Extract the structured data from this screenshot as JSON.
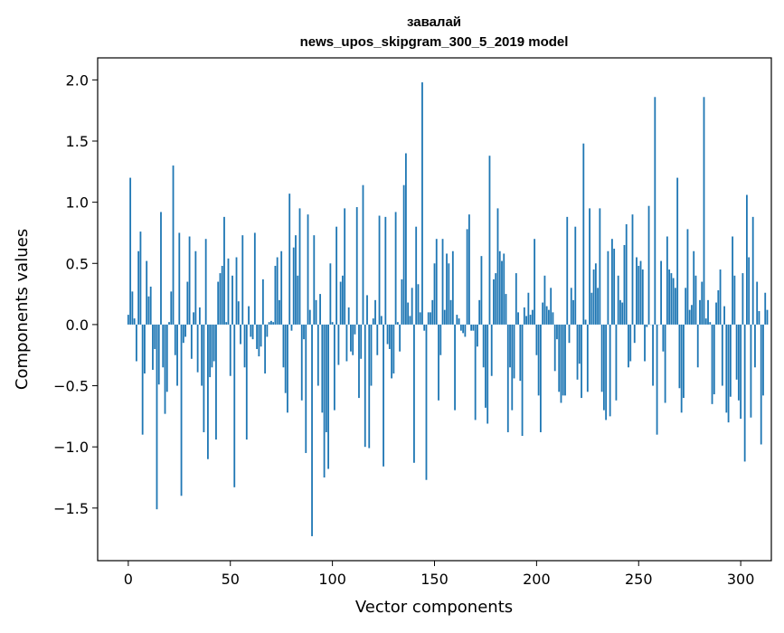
{
  "chart_data": {
    "type": "bar",
    "title_line1": "завалай",
    "title_line2": "news_upos_skipgram_300_5_2019 model",
    "xlabel": "Vector components",
    "ylabel": "Components values",
    "xlim": [
      -15,
      315
    ],
    "ylim": [
      -1.93,
      2.18
    ],
    "xticks": [
      0,
      50,
      100,
      150,
      200,
      250,
      300
    ],
    "xtick_labels": [
      "0",
      "50",
      "100",
      "150",
      "200",
      "250",
      "300"
    ],
    "yticks": [
      -1.5,
      -1.0,
      -0.5,
      0.0,
      0.5,
      1.0,
      1.5,
      2.0
    ],
    "ytick_labels": [
      "−1.5",
      "−1.0",
      "−0.5",
      "0.0",
      "0.5",
      "1.0",
      "1.5",
      "2.0"
    ],
    "grid": false,
    "bar_color": "#1f77b4",
    "values": [
      0.08,
      1.2,
      0.27,
      0.05,
      -0.3,
      0.6,
      0.76,
      -0.9,
      -0.4,
      0.52,
      0.23,
      0.31,
      -0.37,
      -0.2,
      -1.51,
      -0.49,
      0.92,
      -0.35,
      -0.73,
      -0.55,
      0.02,
      0.27,
      1.3,
      -0.25,
      -0.5,
      0.75,
      -1.4,
      -0.15,
      -0.1,
      0.35,
      0.72,
      -0.28,
      0.1,
      0.6,
      -0.39,
      0.14,
      -0.5,
      -0.88,
      0.7,
      -1.1,
      -0.43,
      -0.35,
      -0.3,
      -0.94,
      0.35,
      0.42,
      0.48,
      0.88,
      0.02,
      0.54,
      -0.42,
      0.4,
      -1.33,
      0.55,
      0.19,
      -0.16,
      0.73,
      -0.35,
      -0.94,
      0.15,
      -0.1,
      -0.12,
      0.75,
      -0.2,
      -0.26,
      -0.18,
      0.37,
      -0.4,
      -0.1,
      0.02,
      0.03,
      0.02,
      0.48,
      0.55,
      0.2,
      0.6,
      -0.35,
      -0.56,
      -0.72,
      1.07,
      -0.05,
      0.63,
      0.73,
      0.4,
      0.95,
      -0.62,
      -0.12,
      -1.05,
      0.9,
      0.12,
      -1.73,
      0.73,
      0.2,
      -0.5,
      0.25,
      -0.72,
      -1.25,
      -0.88,
      -1.18,
      0.5,
      0.02,
      -0.7,
      0.8,
      -0.33,
      0.35,
      0.4,
      0.95,
      -0.3,
      0.14,
      -0.22,
      -0.25,
      -0.08,
      0.96,
      -0.6,
      -0.28,
      1.14,
      -1.0,
      0.24,
      -1.01,
      -0.5,
      0.05,
      0.2,
      -0.25,
      0.89,
      0.07,
      -1.16,
      0.88,
      -0.16,
      -0.2,
      -0.44,
      -0.4,
      0.92,
      0.02,
      -0.22,
      0.37,
      1.14,
      1.4,
      0.18,
      0.07,
      0.3,
      -1.13,
      0.8,
      0.33,
      0.1,
      1.98,
      -0.05,
      -1.27,
      0.1,
      0.1,
      0.2,
      0.5,
      0.7,
      -0.62,
      -0.25,
      0.7,
      0.12,
      0.58,
      0.5,
      0.2,
      0.6,
      -0.7,
      0.08,
      0.05,
      -0.05,
      -0.07,
      -0.1,
      0.78,
      0.9,
      -0.05,
      -0.05,
      -0.78,
      -0.18,
      0.2,
      0.56,
      -0.35,
      -0.68,
      -0.81,
      1.38,
      -0.42,
      0.37,
      0.42,
      0.95,
      0.6,
      0.52,
      0.58,
      0.25,
      -0.88,
      -0.35,
      -0.7,
      -0.44,
      0.42,
      0.1,
      -0.46,
      -0.91,
      0.14,
      0.07,
      0.26,
      0.08,
      0.12,
      0.7,
      -0.25,
      -0.58,
      -0.88,
      0.18,
      0.4,
      0.15,
      0.12,
      0.3,
      0.1,
      -0.38,
      -0.12,
      -0.55,
      -0.64,
      -0.58,
      -0.58,
      0.88,
      -0.15,
      0.3,
      0.2,
      0.8,
      -0.45,
      -0.32,
      -0.6,
      1.48,
      0.04,
      -0.55,
      0.95,
      0.26,
      0.45,
      0.5,
      0.3,
      0.95,
      -0.55,
      -0.7,
      -0.78,
      0.6,
      -0.75,
      0.7,
      0.62,
      -0.62,
      0.4,
      0.2,
      0.18,
      0.65,
      0.82,
      -0.35,
      -0.3,
      0.9,
      -0.15,
      0.55,
      0.48,
      0.52,
      0.45,
      -0.3,
      -0.02,
      0.97,
      0.0,
      -0.5,
      1.86,
      -0.9,
      0.0,
      0.52,
      -0.22,
      -0.64,
      0.72,
      0.45,
      0.42,
      0.38,
      0.3,
      1.2,
      -0.52,
      -0.72,
      -0.6,
      0.3,
      0.78,
      0.12,
      0.16,
      0.6,
      0.4,
      -0.35,
      0.2,
      0.35,
      1.86,
      0.05,
      0.2,
      0.02,
      -0.65,
      -0.57,
      0.18,
      0.28,
      0.45,
      -0.5,
      0.15,
      -0.72,
      -0.8,
      -0.59,
      0.72,
      0.4,
      -0.45,
      -0.62,
      -0.77,
      0.42,
      -1.12,
      1.06,
      0.55,
      -0.76,
      0.88,
      -0.35,
      0.35,
      0.11,
      -0.98,
      -0.58,
      0.26,
      0.12
    ]
  }
}
